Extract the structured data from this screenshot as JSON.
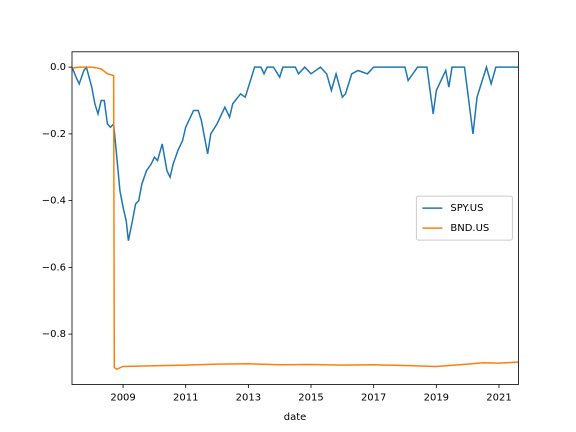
{
  "chart_data": {
    "type": "line",
    "xlabel": "date",
    "xlim": [
      2007.37,
      2021.62
    ],
    "ylim": [
      -0.951,
      0.046
    ],
    "xticks": [
      2009,
      2011,
      2013,
      2015,
      2017,
      2019,
      2021
    ],
    "yticks": [
      {
        "value": 0.0,
        "label": "0.0"
      },
      {
        "value": -0.2,
        "label": "−0.2"
      },
      {
        "value": -0.4,
        "label": "−0.4"
      },
      {
        "value": -0.6,
        "label": "−0.6"
      },
      {
        "value": -0.8,
        "label": "−0.8"
      }
    ],
    "legend": "center right",
    "series": [
      {
        "name": "SPY.US",
        "color": "#1f77b4",
        "x": [
          2007.37,
          2007.5,
          2007.6,
          2007.75,
          2007.83,
          2008.0,
          2008.1,
          2008.2,
          2008.3,
          2008.4,
          2008.5,
          2008.6,
          2008.7,
          2008.8,
          2008.9,
          2009.0,
          2009.1,
          2009.17,
          2009.3,
          2009.4,
          2009.5,
          2009.6,
          2009.75,
          2009.9,
          2010.0,
          2010.1,
          2010.25,
          2010.4,
          2010.5,
          2010.6,
          2010.75,
          2010.9,
          2011.0,
          2011.25,
          2011.4,
          2011.5,
          2011.7,
          2011.8,
          2012.0,
          2012.25,
          2012.4,
          2012.5,
          2012.75,
          2012.9,
          2013.0,
          2013.2,
          2013.4,
          2013.5,
          2013.6,
          2013.8,
          2014.0,
          2014.1,
          2014.5,
          2014.6,
          2014.8,
          2015.0,
          2015.3,
          2015.5,
          2015.65,
          2015.8,
          2016.0,
          2016.1,
          2016.3,
          2016.5,
          2016.8,
          2017.0,
          2018.0,
          2018.1,
          2018.4,
          2018.7,
          2018.9,
          2019.0,
          2019.3,
          2019.4,
          2019.5,
          2019.9,
          2020.17,
          2020.3,
          2020.5,
          2020.6,
          2020.75,
          2020.9,
          2021.62
        ],
        "values": [
          0,
          -0.03,
          -0.05,
          -0.01,
          0,
          -0.06,
          -0.11,
          -0.14,
          -0.1,
          -0.1,
          -0.17,
          -0.18,
          -0.17,
          -0.27,
          -0.37,
          -0.42,
          -0.46,
          -0.52,
          -0.46,
          -0.41,
          -0.4,
          -0.35,
          -0.31,
          -0.29,
          -0.27,
          -0.28,
          -0.23,
          -0.31,
          -0.33,
          -0.29,
          -0.25,
          -0.22,
          -0.18,
          -0.13,
          -0.13,
          -0.16,
          -0.26,
          -0.2,
          -0.17,
          -0.12,
          -0.15,
          -0.11,
          -0.08,
          -0.09,
          -0.06,
          0,
          0,
          -0.02,
          0,
          0,
          -0.03,
          0,
          0,
          -0.02,
          0,
          -0.02,
          0,
          -0.02,
          -0.07,
          -0.02,
          -0.09,
          -0.08,
          -0.02,
          -0.01,
          -0.02,
          0,
          0,
          -0.04,
          0,
          0,
          -0.14,
          -0.07,
          -0.01,
          -0.06,
          0,
          0,
          -0.2,
          -0.09,
          -0.03,
          0,
          -0.05,
          0,
          0
        ]
      },
      {
        "name": "BND.US",
        "color": "#ff7f0e",
        "x": [
          2007.37,
          2007.6,
          2008.0,
          2008.3,
          2008.5,
          2008.7,
          2008.72,
          2008.8,
          2009.0,
          2010.0,
          2011.0,
          2012.0,
          2013.0,
          2014.0,
          2015.0,
          2016.0,
          2017.0,
          2018.0,
          2019.0,
          2020.0,
          2020.5,
          2021.0,
          2021.62
        ],
        "values": [
          -0.003,
          0,
          0,
          -0.005,
          -0.02,
          -0.025,
          -0.9,
          -0.905,
          -0.897,
          -0.895,
          -0.893,
          -0.89,
          -0.889,
          -0.892,
          -0.891,
          -0.893,
          -0.892,
          -0.894,
          -0.897,
          -0.89,
          -0.886,
          -0.887,
          -0.884
        ]
      }
    ]
  }
}
